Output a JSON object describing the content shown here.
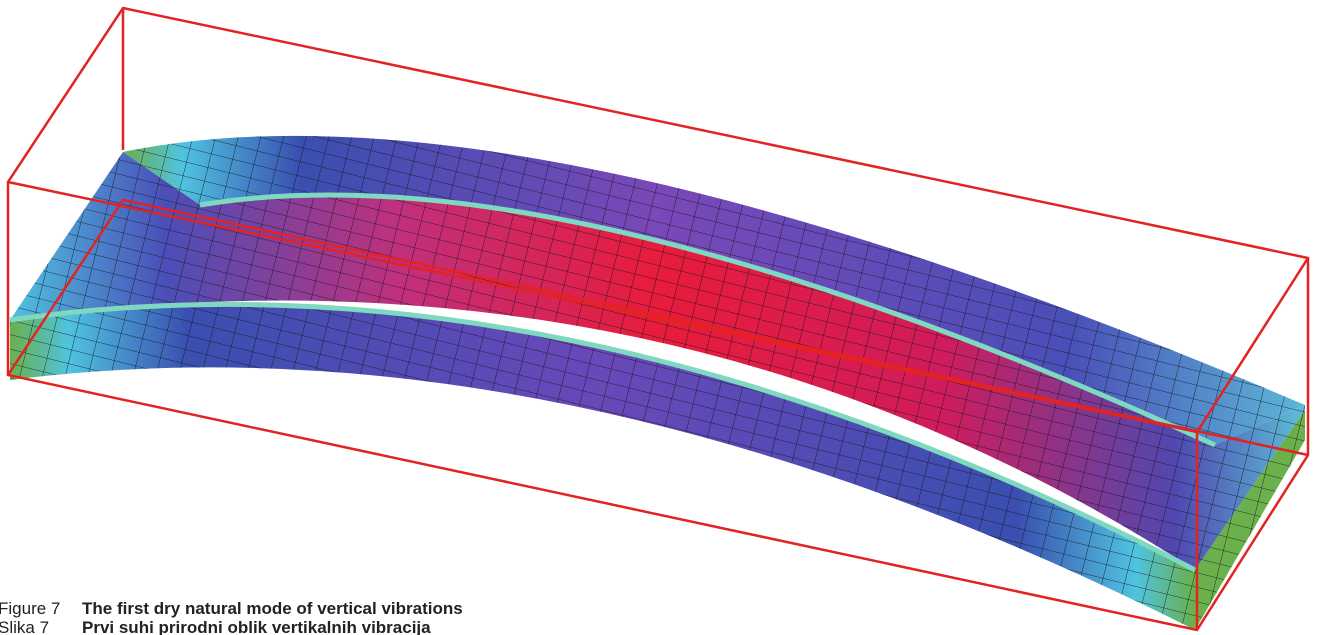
{
  "figure": {
    "caption_en": {
      "label": "Figure 7",
      "text": "The first dry natural mode of vertical vibrations"
    },
    "caption_hr": {
      "label": "Slika 7",
      "text": "Prvi suhi prirodni oblik vertikalnih vibracija"
    }
  }
}
